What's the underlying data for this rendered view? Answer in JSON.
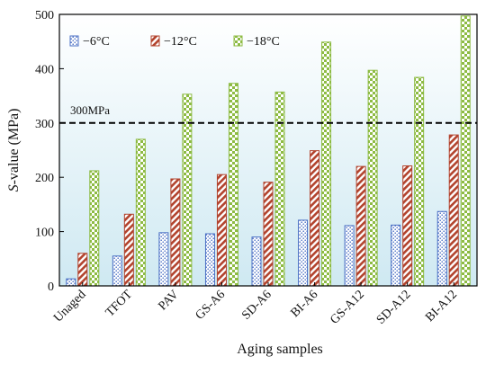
{
  "chart_data": {
    "type": "bar",
    "xlabel": "Aging samples",
    "ylabel_italic": "S",
    "ylabel_rest": "-value (MPa)",
    "ylim": [
      0,
      500
    ],
    "yticks": [
      0,
      100,
      200,
      300,
      400,
      500
    ],
    "grid": false,
    "legend_position": "top-left",
    "categories": [
      "Unaged",
      "TFOT",
      "PAV",
      "GS-A6",
      "SD-A6",
      "BI-A6",
      "GS-A12",
      "SD-A12",
      "BI-A12"
    ],
    "series": [
      {
        "name": "−6°C",
        "values": [
          13,
          55,
          98,
          96,
          90,
          121,
          111,
          112,
          137
        ],
        "color": "#4a6fc4",
        "pattern": "dots"
      },
      {
        "name": "−12°C",
        "values": [
          60,
          132,
          197,
          205,
          191,
          249,
          220,
          221,
          278
        ],
        "color": "#b2432d",
        "pattern": "diagonal"
      },
      {
        "name": "−18°C",
        "values": [
          212,
          270,
          353,
          373,
          357,
          449,
          397,
          384,
          497
        ],
        "color": "#8dbb43",
        "pattern": "checker"
      }
    ],
    "reference_line": {
      "value": 300,
      "label": "300MPa",
      "style": "dashed"
    },
    "background_gradient": [
      "#ffffff",
      "#cfe9f2"
    ]
  }
}
